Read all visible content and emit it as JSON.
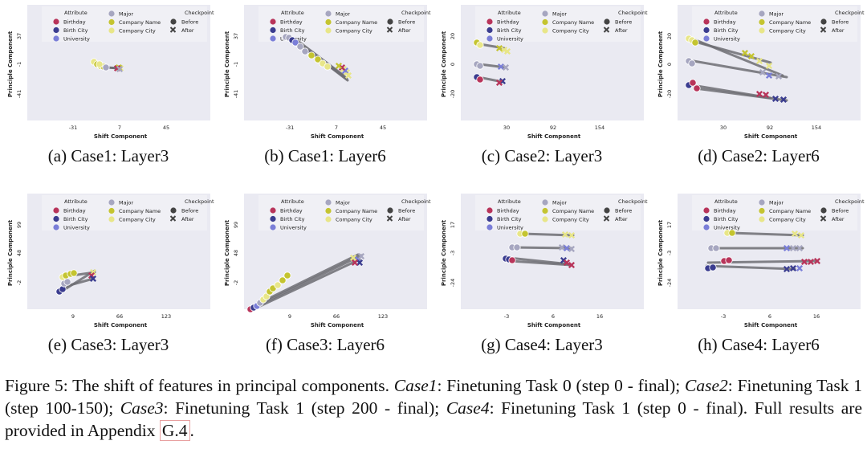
{
  "legend": {
    "attribute_title": "Attribute",
    "major_title": "Major",
    "checkpoint_title": "Checkpoint",
    "attributes": [
      "Birthday",
      "Birth City",
      "University"
    ],
    "majors": [
      "Major",
      "Company Name",
      "Company City"
    ],
    "checkpoints": [
      "Before",
      "After"
    ]
  },
  "colors": {
    "plot_bg": "#eaeaf2",
    "Birthday": "#b8345a",
    "Birth City": "#3a3c8f",
    "University": "#7a7ed8",
    "Major": "#a6a6c0",
    "Company Name": "#c4c430",
    "Company City": "#e8e688",
    "line": "#6e6e74"
  },
  "axis_labels": {
    "x": "Shift Component",
    "y": "Principle Component"
  },
  "panels": [
    {
      "id": "a",
      "caption": "(a) Case1: Layer3",
      "xticks": [
        "-31",
        "7",
        "45"
      ],
      "yticks": [
        "37",
        "-1",
        "-41"
      ]
    },
    {
      "id": "b",
      "caption": "(b) Case1: Layer6",
      "xticks": [
        "-31",
        "7",
        "45"
      ],
      "yticks": [
        "37",
        "-1",
        "-41"
      ]
    },
    {
      "id": "c",
      "caption": "(c) Case2: Layer3",
      "xticks": [
        "30",
        "92",
        "154"
      ],
      "yticks": [
        "20",
        "0",
        "-20"
      ]
    },
    {
      "id": "d",
      "caption": "(d) Case2: Layer6",
      "xticks": [
        "30",
        "92",
        "154"
      ],
      "yticks": [
        "20",
        "0",
        "-20"
      ]
    },
    {
      "id": "e",
      "caption": "(e) Case3: Layer3",
      "xticks": [
        "9",
        "66",
        "123"
      ],
      "yticks": [
        "99",
        "48",
        "-2"
      ]
    },
    {
      "id": "f",
      "caption": "(f) Case3: Layer6",
      "xticks": [
        "9",
        "66",
        "123"
      ],
      "yticks": [
        "99",
        "48",
        "-2"
      ]
    },
    {
      "id": "g",
      "caption": "(g) Case4: Layer3",
      "xticks": [
        "-3",
        "6",
        "16"
      ],
      "yticks": [
        "17",
        "-3",
        "-24"
      ]
    },
    {
      "id": "h",
      "caption": "(h) Case4: Layer6",
      "xticks": [
        "-3",
        "6",
        "16"
      ],
      "yticks": [
        "17",
        "-3",
        "-24"
      ]
    }
  ],
  "figure_caption": {
    "prefix": "Figure 5: The shift of features in principal components. ",
    "c1_label": "Case1",
    "c1_text": ": Finetuning Task 0 (step 0 - final); ",
    "c2_label": "Case2",
    "c2_text": ": Finetuning Task 1 (step 100-150); ",
    "c3_label": "Case3",
    "c3_text": ": Finetuning Task 1 (step 200 - final); ",
    "c4_label": "Case4",
    "c4_text": ": Finetuning Task 1 (step 0 - final). Full results are provided in Appendix ",
    "ref": "G.4",
    "suffix": "."
  }
}
